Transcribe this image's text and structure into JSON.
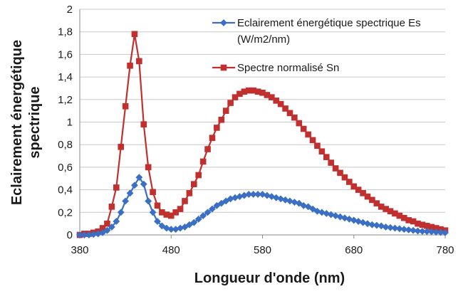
{
  "chart_data": {
    "type": "line",
    "title": "",
    "xlabel": "Longueur d'onde (nm)",
    "ylabel": [
      "Eclairement énergétique",
      "spectrique"
    ],
    "xlim": [
      380,
      780
    ],
    "ylim": [
      0,
      2
    ],
    "xticks": [
      380,
      480,
      580,
      680,
      780
    ],
    "yticks": [
      0,
      0.2,
      0.4,
      0.6,
      0.8,
      1,
      1.2,
      1.4,
      1.6,
      1.8,
      2
    ],
    "ytick_labels": [
      "0",
      "0,2",
      "0,4",
      "0,6",
      "0,8",
      "1",
      "1,2",
      "1,4",
      "1,6",
      "1,8",
      "2"
    ],
    "grid": "horizontal",
    "legend_position": "top-right",
    "x": [
      380,
      385,
      390,
      395,
      400,
      405,
      410,
      415,
      420,
      425,
      430,
      435,
      440,
      445,
      450,
      455,
      460,
      465,
      470,
      475,
      480,
      485,
      490,
      495,
      500,
      505,
      510,
      515,
      520,
      525,
      530,
      535,
      540,
      545,
      550,
      555,
      560,
      565,
      570,
      575,
      580,
      585,
      590,
      595,
      600,
      605,
      610,
      615,
      620,
      625,
      630,
      635,
      640,
      645,
      650,
      655,
      660,
      665,
      670,
      675,
      680,
      685,
      690,
      695,
      700,
      705,
      710,
      715,
      720,
      725,
      730,
      735,
      740,
      745,
      750,
      755,
      760,
      765,
      770,
      775,
      780
    ],
    "series": [
      {
        "name": "Eclairement énergétique spectrique Es (W/m2/nm)",
        "legend_lines": [
          "Eclairement énergétique spectrique Es",
          "(W/m2/nm)"
        ],
        "color": "#3a6fc4",
        "marker": "diamond",
        "values": [
          0.0,
          0.0,
          0.0,
          0.005,
          0.01,
          0.02,
          0.04,
          0.07,
          0.12,
          0.2,
          0.3,
          0.37,
          0.44,
          0.51,
          0.45,
          0.3,
          0.2,
          0.12,
          0.08,
          0.06,
          0.05,
          0.05,
          0.06,
          0.07,
          0.09,
          0.11,
          0.14,
          0.17,
          0.2,
          0.23,
          0.26,
          0.28,
          0.3,
          0.32,
          0.33,
          0.34,
          0.35,
          0.36,
          0.36,
          0.36,
          0.36,
          0.35,
          0.34,
          0.33,
          0.32,
          0.31,
          0.3,
          0.29,
          0.28,
          0.26,
          0.25,
          0.23,
          0.21,
          0.2,
          0.19,
          0.18,
          0.17,
          0.16,
          0.15,
          0.14,
          0.13,
          0.12,
          0.11,
          0.1,
          0.09,
          0.085,
          0.08,
          0.07,
          0.065,
          0.06,
          0.055,
          0.05,
          0.045,
          0.04,
          0.035,
          0.032,
          0.03,
          0.028,
          0.025,
          0.022,
          0.02
        ]
      },
      {
        "name": "Spectre normalisé Sn",
        "legend_lines": [
          "Spectre normalisé Sn"
        ],
        "color": "#c0302e",
        "marker": "square",
        "values": [
          0.0,
          0.01,
          0.01,
          0.02,
          0.03,
          0.06,
          0.1,
          0.25,
          0.42,
          0.78,
          1.14,
          1.5,
          1.78,
          1.54,
          0.98,
          0.6,
          0.38,
          0.26,
          0.2,
          0.18,
          0.17,
          0.2,
          0.23,
          0.3,
          0.37,
          0.45,
          0.53,
          0.65,
          0.76,
          0.86,
          0.95,
          1.02,
          1.1,
          1.17,
          1.22,
          1.25,
          1.27,
          1.28,
          1.28,
          1.27,
          1.26,
          1.24,
          1.22,
          1.19,
          1.16,
          1.12,
          1.08,
          1.04,
          0.99,
          0.94,
          0.89,
          0.84,
          0.79,
          0.74,
          0.69,
          0.64,
          0.59,
          0.55,
          0.51,
          0.47,
          0.43,
          0.4,
          0.37,
          0.34,
          0.31,
          0.28,
          0.25,
          0.23,
          0.21,
          0.19,
          0.17,
          0.15,
          0.13,
          0.12,
          0.1,
          0.09,
          0.08,
          0.07,
          0.06,
          0.05,
          0.04
        ]
      }
    ]
  }
}
